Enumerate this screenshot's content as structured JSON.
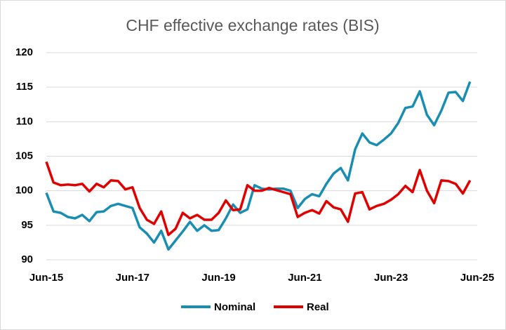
{
  "chart_data": {
    "type": "line",
    "title": "CHF effective exchange rates (BIS)",
    "categories": [
      "Jun-15",
      null,
      null,
      null,
      null,
      null,
      null,
      null,
      null,
      null,
      null,
      null,
      "Jun-17",
      null,
      null,
      null,
      null,
      null,
      null,
      null,
      null,
      null,
      null,
      null,
      "Jun-19",
      null,
      null,
      null,
      null,
      null,
      null,
      null,
      null,
      null,
      null,
      null,
      "Jun-21",
      null,
      null,
      null,
      null,
      null,
      null,
      null,
      null,
      null,
      null,
      null,
      "Jun-23",
      null,
      null,
      null,
      null,
      null,
      null,
      null,
      null,
      null,
      null,
      null,
      "Jun-25"
    ],
    "series": [
      {
        "name": "Nominal",
        "color": "#1a8db3",
        "values": [
          99.7,
          97.0,
          96.8,
          96.2,
          96.0,
          96.5,
          95.6,
          96.9,
          97.0,
          97.8,
          98.1,
          97.8,
          97.5,
          94.7,
          93.8,
          92.5,
          94.2,
          91.5,
          92.8,
          94.1,
          95.5,
          94.2,
          95.0,
          94.2,
          94.3,
          96.0,
          98.0,
          96.8,
          97.3,
          100.8,
          100.3,
          100.2,
          100.3,
          100.3,
          100.0,
          97.5,
          98.8,
          99.5,
          99.2,
          101.0,
          102.5,
          103.3,
          101.5,
          106.0,
          108.3,
          107.0,
          106.6,
          107.4,
          108.3,
          109.8,
          112.0,
          112.2,
          114.4,
          111.0,
          109.5,
          111.6,
          114.2,
          114.3,
          113.0,
          115.8,
          null
        ]
      },
      {
        "name": "Real",
        "color": "#e00000",
        "values": [
          104.2,
          101.2,
          100.8,
          100.9,
          100.8,
          101.0,
          99.9,
          101.0,
          100.5,
          101.5,
          101.4,
          100.2,
          100.5,
          97.5,
          95.8,
          95.2,
          97.0,
          93.6,
          94.5,
          96.8,
          96.0,
          96.5,
          95.8,
          95.8,
          96.8,
          98.6,
          97.2,
          97.3,
          100.8,
          100.0,
          100.0,
          100.4,
          100.1,
          99.8,
          99.5,
          96.2,
          96.8,
          97.2,
          96.7,
          98.5,
          97.6,
          97.3,
          95.5,
          99.6,
          99.8,
          97.3,
          97.8,
          98.1,
          98.7,
          99.5,
          100.7,
          99.8,
          103.0,
          100.0,
          98.2,
          101.5,
          101.4,
          101.0,
          99.6,
          101.5,
          null
        ]
      }
    ],
    "ylim": [
      90,
      120
    ],
    "yticks": [
      90,
      95,
      100,
      105,
      110,
      115,
      120
    ],
    "grid": true,
    "legend": "bottom"
  }
}
